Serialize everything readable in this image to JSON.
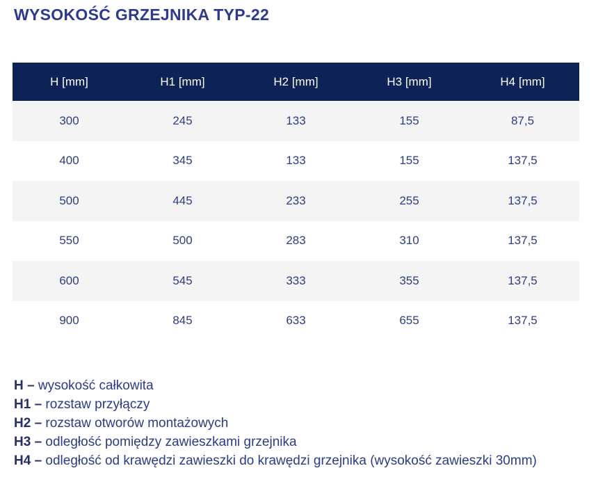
{
  "page": {
    "title": "WYSOKOŚĆ GRZEJNIKA TYP-22"
  },
  "colors": {
    "title_text": "#2b3990",
    "header_bg": "#0d2357",
    "header_text": "#ffffff",
    "row_alt_bg": "#f4f4f5",
    "data_text": "#2e3d82",
    "legend_label": "#252e6b",
    "legend_text": "#2b3a8c"
  },
  "table": {
    "headers": [
      "H [mm]",
      "H1 [mm]",
      "H2 [mm]",
      "H3 [mm]",
      "H4 [mm]"
    ],
    "rows": [
      [
        "300",
        "245",
        "133",
        "155",
        "87,5"
      ],
      [
        "400",
        "345",
        "133",
        "155",
        "137,5"
      ],
      [
        "500",
        "445",
        "233",
        "255",
        "137,5"
      ],
      [
        "550",
        "500",
        "283",
        "310",
        "137,5"
      ],
      [
        "600",
        "545",
        "333",
        "355",
        "137,5"
      ],
      [
        "900",
        "845",
        "633",
        "655",
        "137,5"
      ]
    ]
  },
  "legend": {
    "items": [
      {
        "label": "H –",
        "text": "wysokość całkowita"
      },
      {
        "label": "H1 –",
        "text": "rozstaw przyłączy"
      },
      {
        "label": "H2 –",
        "text": "rozstaw otworów montażowych"
      },
      {
        "label": "H3 –",
        "text": "odległość pomiędzy zawieszkami grzejnika"
      },
      {
        "label": "H4 –",
        "text": "odległość od krawędzi zawieszki do krawędzi grzejnika (wysokość zawieszki 30mm)"
      }
    ]
  }
}
